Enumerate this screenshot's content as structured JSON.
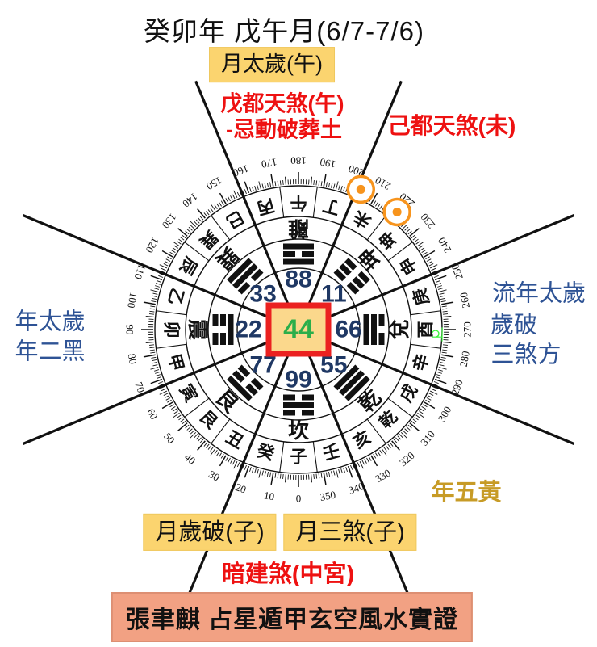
{
  "title": "癸卯年 戊午月(6/7-7/6)",
  "annotations": {
    "month_taisui": "月太歲(午)",
    "du_tian_sha_top_line1": "戊都天煞(午)",
    "du_tian_sha_top_line2": "-忌動破葬土",
    "du_tian_sha_right": "己都天煞(未)",
    "year_left_line1": "年太歲",
    "year_left_line2": "年二黑",
    "year_right_line1": "流年太歲",
    "year_right_line2": "歲破",
    "year_right_line3": "三煞方",
    "year_five_yellow": "年五黃",
    "month_suipo": "月歲破(子)",
    "month_sansha": "月三煞(子)",
    "hidden_jian_sha": "暗建煞(中宮)",
    "banner": "張聿麒 占星遁甲玄空風水實證"
  },
  "colors": {
    "red_text": "#EE1111",
    "blue_text": "#2E5395",
    "navy_numbers": "#1F3864",
    "gold_text": "#C79B26",
    "yellow_box": "#FBD46F",
    "banner_bg": "#F2A183",
    "center_square_fill": "#FBD88C",
    "center_square_border": "#EB2120",
    "center_number_green": "#2BAE4A",
    "marker_orange": "#F7941D",
    "jupiter_green": "#3DF53D",
    "line_black": "#111111"
  },
  "compass": {
    "center_number": "44",
    "palaces": [
      {
        "bearing": 180,
        "value": "88"
      },
      {
        "bearing": 225,
        "value": "11"
      },
      {
        "bearing": 270,
        "value": "66"
      },
      {
        "bearing": 315,
        "value": "55"
      },
      {
        "bearing": 0,
        "value": "99"
      },
      {
        "bearing": 45,
        "value": "77"
      },
      {
        "bearing": 90,
        "value": "22"
      },
      {
        "bearing": 135,
        "value": "33"
      }
    ],
    "trigrams": [
      {
        "bearing": 0,
        "name": "坎",
        "lines": "010"
      },
      {
        "bearing": 45,
        "name": "艮",
        "lines": "100"
      },
      {
        "bearing": 90,
        "name": "震",
        "lines": "001"
      },
      {
        "bearing": 135,
        "name": "巽",
        "lines": "110"
      },
      {
        "bearing": 180,
        "name": "離",
        "lines": "101"
      },
      {
        "bearing": 225,
        "name": "坤",
        "lines": "000"
      },
      {
        "bearing": 270,
        "name": "兌",
        "lines": "011"
      },
      {
        "bearing": 315,
        "name": "乾",
        "lines": "111"
      }
    ],
    "mountains": [
      "子",
      "癸",
      "丑",
      "艮",
      "寅",
      "甲",
      "卯",
      "乙",
      "辰",
      "巽",
      "巳",
      "丙",
      "午",
      "丁",
      "未",
      "坤",
      "申",
      "庚",
      "酉",
      "辛",
      "戌",
      "乾",
      "亥",
      "壬"
    ],
    "degree_label_step": 10,
    "degree_max": 350,
    "markers": [
      {
        "bearing": 204
      },
      {
        "bearing": 220
      }
    ],
    "jupiter": {
      "bearing": 272,
      "symbol": "♃"
    }
  }
}
